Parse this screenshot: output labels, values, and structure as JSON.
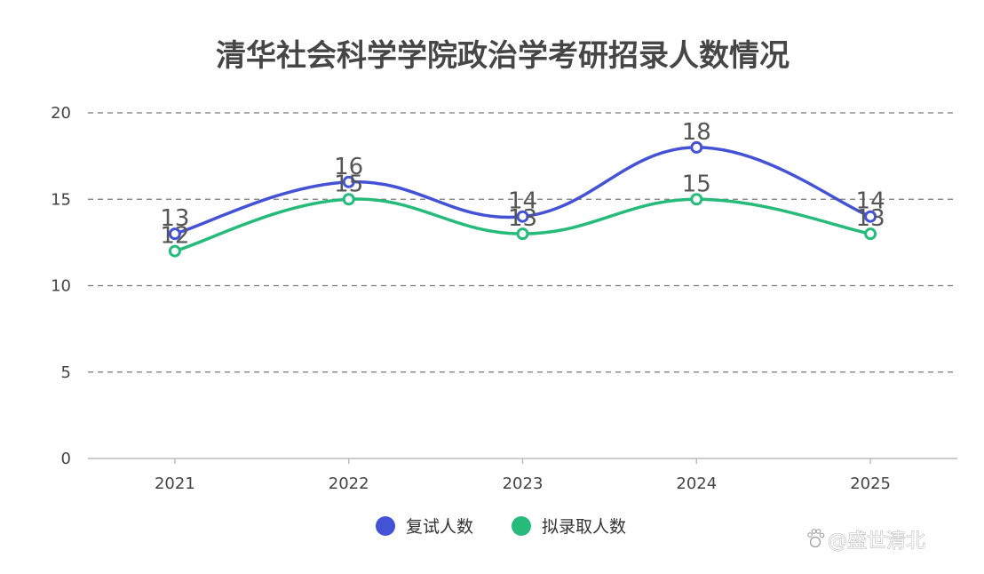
{
  "chart_data": {
    "type": "line",
    "title": "清华社会科学学院政治学考研招录人数情况",
    "xlabel": "",
    "ylabel": "",
    "categories": [
      "2021",
      "2022",
      "2023",
      "2024",
      "2025"
    ],
    "y_ticks": [
      "0",
      "5",
      "10",
      "15",
      "20"
    ],
    "ylim": [
      0,
      20
    ],
    "grid": "horizontal dashed",
    "smooth": true,
    "legend_position": "bottom-center",
    "series": [
      {
        "name": "复试人数",
        "values": [
          13,
          16,
          14,
          18,
          14
        ],
        "color": "#4452d6"
      },
      {
        "name": "拟录取人数",
        "values": [
          12,
          15,
          13,
          15,
          13
        ],
        "color": "#26bb7a"
      }
    ]
  },
  "watermark": {
    "text": "@盛世清北"
  }
}
